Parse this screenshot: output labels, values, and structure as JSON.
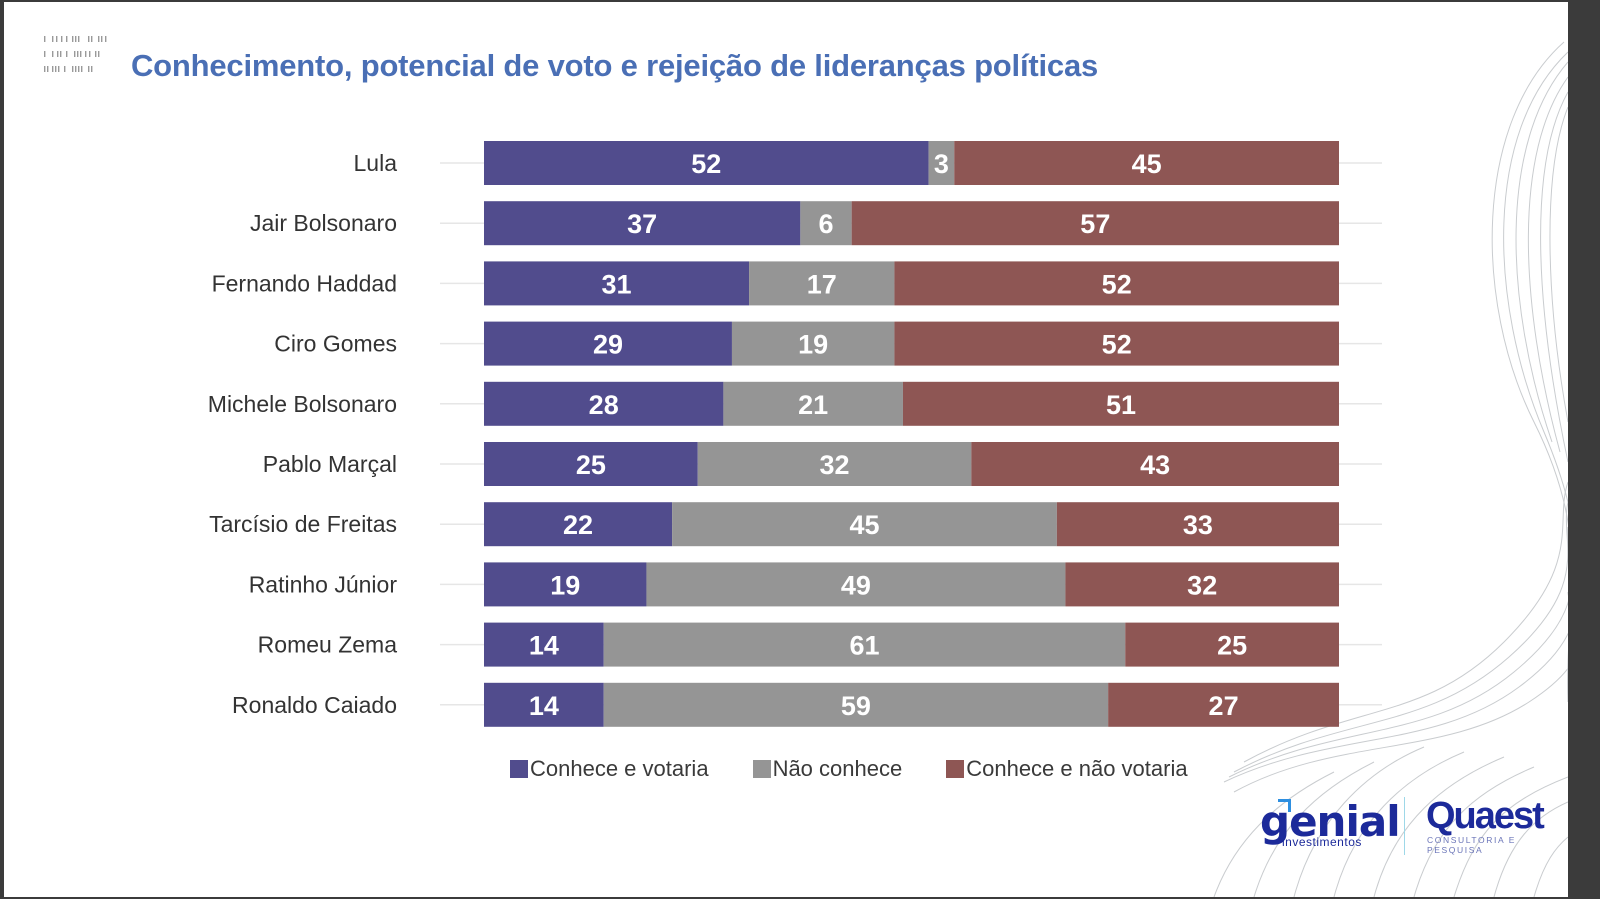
{
  "slide": {
    "title": "Conhecimento, potencial de voto e rejeição de lideranças políticas"
  },
  "chart_data": {
    "type": "bar",
    "orientation": "horizontal",
    "stacked": true,
    "percent_stacked": true,
    "title": "Conhecimento, potencial de voto e rejeição de lideranças políticas",
    "xlabel": "",
    "ylabel": "",
    "xlim": [
      0,
      100
    ],
    "grid": false,
    "legend_position": "bottom",
    "categories": [
      "Lula",
      "Jair Bolsonaro",
      "Fernando Haddad",
      "Ciro Gomes",
      "Michele Bolsonaro",
      "Pablo Marçal",
      "Tarcísio de Freitas",
      "Ratinho Júnior",
      "Romeu Zema",
      "Ronaldo Caiado"
    ],
    "series": [
      {
        "name": "Conhece e votaria",
        "color": "#514C8D",
        "values": [
          52,
          37,
          31,
          29,
          28,
          25,
          22,
          19,
          14,
          14
        ]
      },
      {
        "name": "Não conhece",
        "color": "#959595",
        "values": [
          3,
          6,
          17,
          19,
          21,
          32,
          45,
          49,
          61,
          59
        ]
      },
      {
        "name": "Conhece e não votaria",
        "color": "#8E5654",
        "values": [
          45,
          57,
          52,
          52,
          51,
          43,
          33,
          32,
          25,
          27
        ]
      }
    ],
    "data_labels": true
  },
  "logos": {
    "genial": "genial",
    "genial_sub": "investimentos",
    "quaest": "Quaest",
    "quaest_sub": "CONSULTORIA E PESQUISA"
  }
}
